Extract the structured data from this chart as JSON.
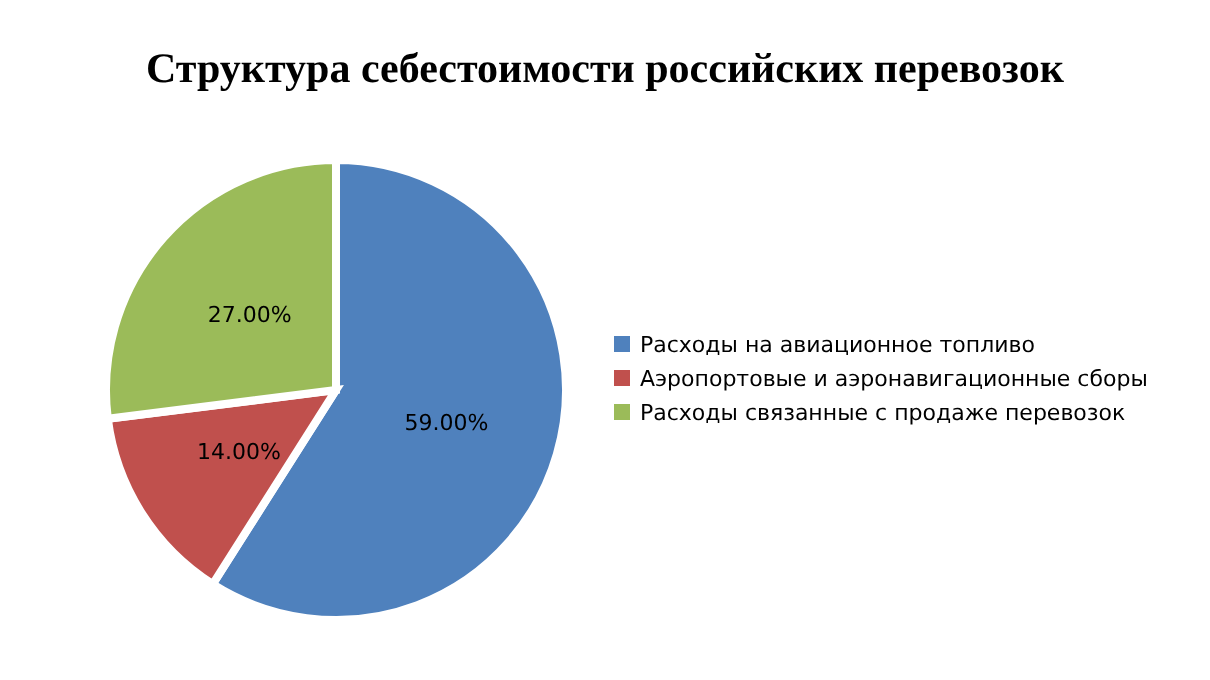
{
  "chart_data": {
    "type": "pie",
    "title": "Структура себестоимости российских перевозок",
    "categories": [
      "Расходы на авиационное топливо",
      "Аэропортовые и аэронавигационные сборы",
      "Расходы связанные с продаже перевозок"
    ],
    "values": [
      59,
      14,
      27
    ],
    "colors": [
      "#4f81bd",
      "#c0504d",
      "#9bbb59"
    ],
    "value_labels": [
      "59.00%",
      "14.00%",
      "27.00%"
    ],
    "legend": "right"
  }
}
